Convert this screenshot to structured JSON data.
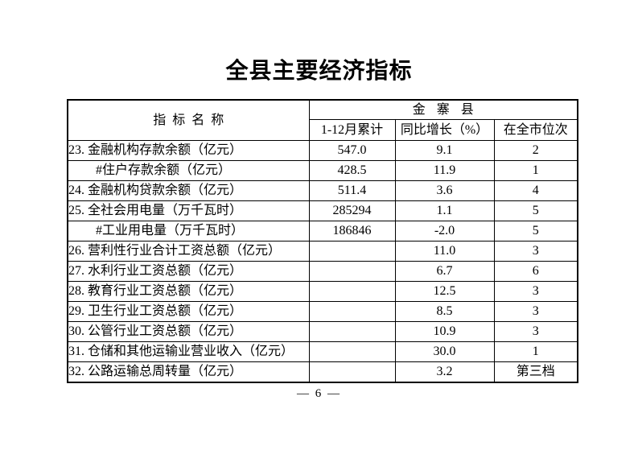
{
  "page": {
    "title": "全县主要经济指标",
    "page_number": "— 6 —"
  },
  "table": {
    "header": {
      "indicator_name": "指标名称",
      "county_group": "金寨县",
      "columns": [
        "1-12月累计",
        "同比增长（%）",
        "在全市位次"
      ]
    },
    "rows": [
      {
        "label": "23. 金融机构存款余额（亿元）",
        "indent": false,
        "cumulative": "547.0",
        "growth": "9.1",
        "rank": "2"
      },
      {
        "label": "#住户存款余额（亿元）",
        "indent": true,
        "cumulative": "428.5",
        "growth": "11.9",
        "rank": "1"
      },
      {
        "label": "24. 金融机构贷款余额（亿元）",
        "indent": false,
        "cumulative": "511.4",
        "growth": "3.6",
        "rank": "4"
      },
      {
        "label": "25. 全社会用电量（万千瓦时）",
        "indent": false,
        "cumulative": "285294",
        "growth": "1.1",
        "rank": "5"
      },
      {
        "label": "#工业用电量（万千瓦时）",
        "indent": true,
        "cumulative": "186846",
        "growth": "-2.0",
        "rank": "5"
      },
      {
        "label": "26. 营利性行业合计工资总额（亿元）",
        "indent": false,
        "cumulative": "",
        "growth": "11.0",
        "rank": "3"
      },
      {
        "label": "27. 水利行业工资总额（亿元）",
        "indent": false,
        "cumulative": "",
        "growth": "6.7",
        "rank": "6"
      },
      {
        "label": "28. 教育行业工资总额（亿元）",
        "indent": false,
        "cumulative": "",
        "growth": "12.5",
        "rank": "3"
      },
      {
        "label": "29. 卫生行业工资总额（亿元）",
        "indent": false,
        "cumulative": "",
        "growth": "8.5",
        "rank": "3"
      },
      {
        "label": "30. 公管行业工资总额（亿元）",
        "indent": false,
        "cumulative": "",
        "growth": "10.9",
        "rank": "3"
      },
      {
        "label": "31. 仓储和其他运输业营业收入（亿元）",
        "indent": false,
        "cumulative": "",
        "growth": "30.0",
        "rank": "1"
      },
      {
        "label": "32. 公路运输总周转量（亿元）",
        "indent": false,
        "cumulative": "",
        "growth": "3.2",
        "rank": "第三档"
      }
    ]
  }
}
